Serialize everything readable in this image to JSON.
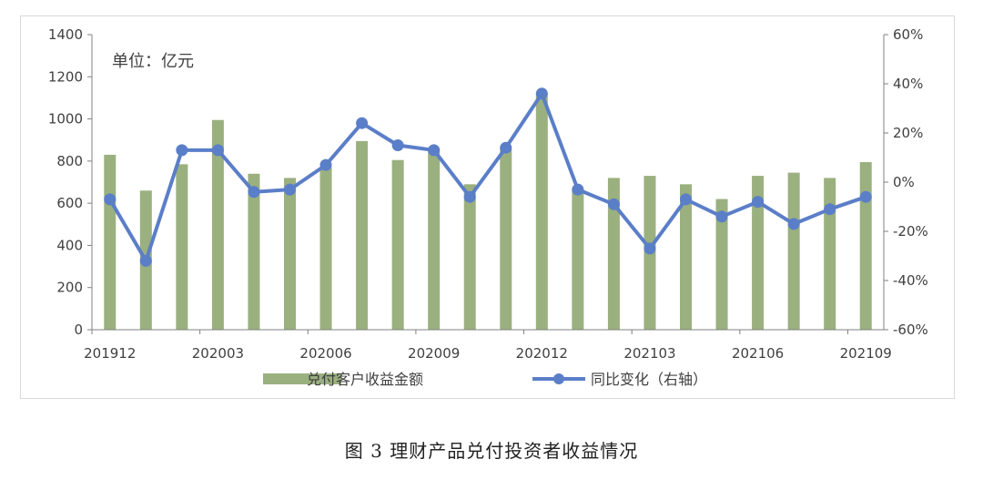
{
  "caption": "图 3   理财产品兑付投资者收益情况",
  "chart_data": {
    "type": "bar+line",
    "unit_label": "单位：亿元",
    "x": [
      "201912",
      "202001",
      "202002",
      "202003",
      "202004",
      "202005",
      "202006",
      "202007",
      "202008",
      "202009",
      "202010",
      "202011",
      "202012",
      "202101",
      "202102",
      "202103",
      "202104",
      "202105",
      "202106",
      "202107",
      "202108",
      "202109"
    ],
    "x_tick_labels": [
      "201912",
      "202003",
      "202006",
      "202009",
      "202012",
      "202103",
      "202106",
      "202109"
    ],
    "series": [
      {
        "name": "兑付客户收益金额",
        "type": "bar",
        "axis": "left",
        "color": "#9bb07f",
        "values": [
          830,
          660,
          785,
          995,
          740,
          720,
          770,
          895,
          805,
          860,
          690,
          860,
          1120,
          670,
          720,
          730,
          690,
          620,
          730,
          745,
          720,
          795
        ]
      },
      {
        "name": "同比变化（右轴）",
        "type": "line",
        "axis": "right",
        "color": "#5b7ec8",
        "values": [
          -7,
          -32,
          13,
          13,
          -4,
          -3,
          7,
          24,
          15,
          13,
          -6,
          14,
          36,
          -3,
          -9,
          -27,
          -7,
          -14,
          -8,
          -17,
          -11,
          -6
        ]
      }
    ],
    "ylim_left": [
      0,
      1400
    ],
    "yticks_left": [
      "0",
      "200",
      "400",
      "600",
      "800",
      "1000",
      "1200",
      "1400"
    ],
    "ylim_right": [
      -60,
      60
    ],
    "yticks_right": [
      "-60%",
      "-40%",
      "-20%",
      "0%",
      "20%",
      "40%",
      "60%"
    ],
    "legend_position": "bottom",
    "grid": false
  }
}
